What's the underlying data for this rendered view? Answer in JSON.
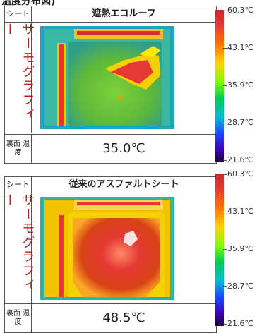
{
  "header": {
    "cut_text": "温度分布図)"
  },
  "panels": [
    {
      "tag": "シート",
      "title": "遮熱エコルーフ",
      "side_label": "サーモグラフィー",
      "foot_label": "裏面 温度",
      "value": "35.0℃"
    },
    {
      "tag": "シート",
      "title": "従来のアスファルトシート",
      "side_label": "サーモグラフィー",
      "foot_label": "裏面 温度",
      "value": "48.5℃"
    }
  ],
  "scale": {
    "ticks": [
      "60.3℃",
      "43.1℃",
      "35.9℃",
      "28.7℃",
      "21.6℃"
    ]
  },
  "colors": {
    "hot": "#c62828",
    "cold": "#1a0033"
  }
}
